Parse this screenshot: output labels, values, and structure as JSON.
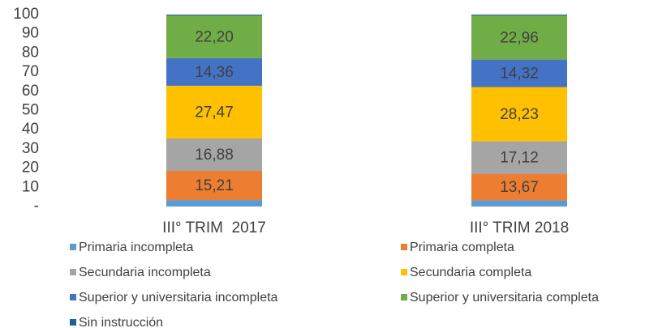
{
  "chart_data": {
    "type": "stacked_bar",
    "categories": [
      "III° TRIM  2017",
      "III° TRIM 2018"
    ],
    "series": [
      {
        "name": "Primaria incompleta",
        "color": "#5b9bd5",
        "values": [
          3.35,
          3.2
        ],
        "value_labels": [
          null,
          null
        ]
      },
      {
        "name": "Primaria completa",
        "color": "#ed7d31",
        "values": [
          15.21,
          13.67
        ],
        "value_labels": [
          "15,21",
          "13,67"
        ]
      },
      {
        "name": "Secundaria incompleta",
        "color": "#a5a5a5",
        "values": [
          16.88,
          17.12
        ],
        "value_labels": [
          "16,88",
          "17,12"
        ]
      },
      {
        "name": "Secundaria completa",
        "color": "#ffc000",
        "values": [
          27.47,
          28.23
        ],
        "value_labels": [
          "27,47",
          "28,23"
        ]
      },
      {
        "name": "Superior y universitaria incompleta",
        "color": "#4472c4",
        "values": [
          14.36,
          14.32
        ],
        "value_labels": [
          "14,36",
          "14,32"
        ]
      },
      {
        "name": "Superior y universitaria completa",
        "color": "#70ad47",
        "values": [
          22.2,
          22.96
        ],
        "value_labels": [
          "22,20",
          "22,96"
        ]
      },
      {
        "name": "Sin instrucción",
        "color": "#255e91",
        "values": [
          0.53,
          0.5
        ],
        "value_labels": [
          null,
          null
        ]
      }
    ],
    "ylim": [
      0,
      100
    ],
    "yticks": [
      {
        "value": 0,
        "label": "-"
      },
      10,
      20,
      30,
      40,
      50,
      60,
      70,
      80,
      90,
      100
    ],
    "grid": false,
    "legend": "bottom"
  }
}
